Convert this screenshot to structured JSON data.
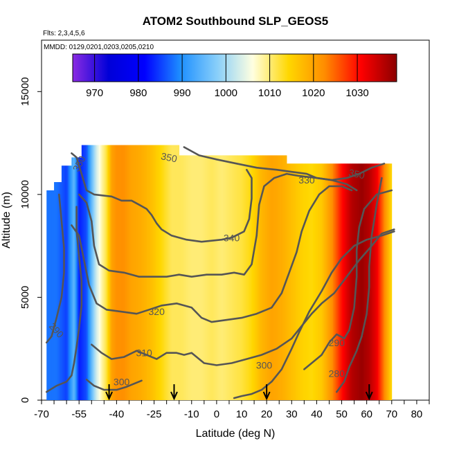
{
  "chart_data": {
    "type": "heatmap",
    "title": "ATOM2 Southbound SLP_GEOS5",
    "annotations": [
      "Flts: 2,3,4,5,6",
      "MMDD: 0129,0201,0203,0205,0210"
    ],
    "xlabel": "Latitude (deg N)",
    "ylabel": "Altitude (m)",
    "xlim": [
      -70,
      85
    ],
    "ylim": [
      0,
      17500
    ],
    "x_ticks": [
      -70,
      -55,
      -40,
      -25,
      -10,
      0,
      10,
      20,
      30,
      40,
      50,
      60,
      70,
      80
    ],
    "y_ticks": [
      0,
      5000,
      10000,
      15000
    ],
    "colorbar": {
      "ticks": [
        970,
        980,
        990,
        1000,
        1010,
        1020,
        1030
      ],
      "range": [
        965,
        1039
      ],
      "colors": [
        "#8a2be2",
        "#0000d8",
        "#0000ff",
        "#1e90ff",
        "#87cefa",
        "#ffffe0",
        "#ffd700",
        "#ff8c00",
        "#ff0000",
        "#8b0000"
      ]
    },
    "slp_profile": {
      "lat": [
        -68,
        -64,
        -60,
        -57,
        -55,
        -52,
        -50,
        -48,
        -46,
        -44,
        -42,
        -40,
        -37,
        -34,
        -30,
        -26,
        -22,
        -18,
        -14,
        -10,
        -6,
        -2,
        2,
        6,
        10,
        14,
        18,
        22,
        26,
        30,
        34,
        38,
        42,
        46,
        50,
        54,
        58,
        61,
        64,
        67,
        70
      ],
      "slp": [
        988,
        988,
        985,
        995,
        983,
        986,
        995,
        1003,
        1008,
        1012,
        1020,
        1022,
        1022,
        1020,
        1019,
        1017,
        1014,
        1011,
        1011,
        1010,
        1010,
        1011,
        1010,
        1011,
        1012,
        1014,
        1018,
        1020,
        1019,
        1017,
        1015,
        1014,
        1016,
        1022,
        1030,
        1036,
        1038,
        1036,
        1032,
        1023,
        1014
      ]
    },
    "ceiling_altitude": [
      {
        "lat_from": -68,
        "lat_to": -65,
        "altitude": 10200
      },
      {
        "lat_from": -65,
        "lat_to": -62,
        "altitude": 10600
      },
      {
        "lat_from": -62,
        "lat_to": -58,
        "altitude": 11400
      },
      {
        "lat_from": -58,
        "lat_to": -54,
        "altitude": 11800
      },
      {
        "lat_from": -54,
        "lat_to": -15,
        "altitude": 12400
      },
      {
        "lat_from": -15,
        "lat_to": 28,
        "altitude": 11900
      },
      {
        "lat_from": 28,
        "lat_to": 70,
        "altitude": 11500
      }
    ],
    "theta_contours": [
      {
        "level": 280,
        "points": [
          [
            48,
            400
          ],
          [
            51,
            900
          ],
          [
            53,
            1600
          ],
          [
            56,
            2400
          ],
          [
            58,
            3100
          ],
          [
            60,
            4200
          ],
          [
            61,
            5500
          ],
          [
            61,
            6500
          ],
          [
            62,
            8000
          ],
          [
            64,
            9500
          ],
          [
            66,
            10800
          ]
        ]
      },
      {
        "level": 290,
        "points": [
          [
            -68,
            2800
          ],
          [
            -66,
            3100
          ],
          [
            -64,
            4000
          ],
          [
            -62,
            5000
          ],
          [
            -61,
            6200
          ],
          [
            -61,
            7400
          ],
          [
            -62,
            8700
          ],
          [
            -63,
            10000
          ]
        ]
      },
      {
        "level": 290,
        "points": [
          [
            35,
            1500
          ],
          [
            38,
            1800
          ],
          [
            42,
            2200
          ],
          [
            45,
            2800
          ],
          [
            48,
            3200
          ],
          [
            51,
            3000
          ],
          [
            53,
            3400
          ],
          [
            55,
            4500
          ],
          [
            56,
            6000
          ],
          [
            56,
            7300
          ],
          [
            57,
            8400
          ],
          [
            59,
            9300
          ],
          [
            64,
            10000
          ],
          [
            70,
            10200
          ]
        ]
      },
      {
        "level": 300,
        "points": [
          [
            -68,
            400
          ],
          [
            -64,
            700
          ],
          [
            -60,
            900
          ],
          [
            -58,
            1200
          ],
          [
            -57,
            1800
          ],
          [
            -56,
            2600
          ],
          [
            -55,
            3500
          ],
          [
            -54,
            4600
          ],
          [
            -54,
            5800
          ],
          [
            -55,
            7000
          ],
          [
            -56,
            8200
          ],
          [
            -56,
            9400
          ]
        ]
      },
      {
        "level": 300,
        "points": [
          [
            -52,
            1000
          ],
          [
            -49,
            700
          ],
          [
            -45,
            500
          ],
          [
            -40,
            500
          ],
          [
            -36,
            650
          ],
          [
            -30,
            950
          ]
        ]
      },
      {
        "level": 300,
        "points": [
          [
            7,
            100
          ],
          [
            10,
            200
          ],
          [
            14,
            300
          ],
          [
            18,
            500
          ],
          [
            22,
            900
          ],
          [
            26,
            1500
          ],
          [
            30,
            2500
          ],
          [
            33,
            3300
          ],
          [
            37,
            4300
          ],
          [
            42,
            5300
          ],
          [
            46,
            6200
          ],
          [
            50,
            6900
          ],
          [
            55,
            7500
          ],
          [
            60,
            7800
          ],
          [
            66,
            8000
          ],
          [
            71,
            8200
          ]
        ]
      },
      {
        "level": 310,
        "points": [
          [
            -50,
            2700
          ],
          [
            -46,
            2300
          ],
          [
            -42,
            2000
          ],
          [
            -37,
            2100
          ],
          [
            -32,
            2400
          ],
          [
            -24,
            2000
          ],
          [
            -20,
            2300
          ],
          [
            -16,
            2300
          ],
          [
            -13,
            2200
          ],
          [
            -10,
            2300
          ],
          [
            -5,
            1800
          ],
          [
            0,
            1700
          ],
          [
            6,
            1800
          ],
          [
            12,
            2000
          ],
          [
            18,
            2200
          ],
          [
            24,
            2500
          ],
          [
            30,
            3000
          ],
          [
            34,
            3600
          ],
          [
            38,
            4200
          ],
          [
            42,
            4700
          ],
          [
            47,
            5200
          ],
          [
            52,
            6000
          ],
          [
            57,
            6800
          ],
          [
            62,
            7500
          ],
          [
            66,
            8100
          ],
          [
            71,
            8300
          ]
        ]
      },
      {
        "level": 320,
        "points": [
          [
            -58,
            8500
          ],
          [
            -55,
            8000
          ],
          [
            -53,
            6800
          ],
          [
            -51,
            5600
          ],
          [
            -48,
            4700
          ],
          [
            -44,
            4400
          ],
          [
            -38,
            4300
          ],
          [
            -32,
            4200
          ],
          [
            -27,
            4400
          ],
          [
            -22,
            4600
          ],
          [
            -16,
            4700
          ],
          [
            -10,
            4500
          ],
          [
            -6,
            4000
          ],
          [
            -2,
            3800
          ],
          [
            4,
            3900
          ],
          [
            10,
            4000
          ],
          [
            16,
            4200
          ],
          [
            22,
            4500
          ],
          [
            26,
            5200
          ],
          [
            29,
            6200
          ],
          [
            32,
            7200
          ],
          [
            34,
            8200
          ],
          [
            37,
            9200
          ],
          [
            41,
            10000
          ],
          [
            45,
            10400
          ],
          [
            50,
            10400
          ],
          [
            54,
            10200
          ]
        ]
      },
      {
        "level": 330,
        "points": [
          [
            -55,
            10000
          ],
          [
            -52,
            9600
          ],
          [
            -50,
            8700
          ],
          [
            -49,
            7500
          ],
          [
            -47,
            6600
          ],
          [
            -43,
            6300
          ],
          [
            -37,
            6200
          ],
          [
            -31,
            6000
          ],
          [
            -26,
            6000
          ],
          [
            -20,
            6000
          ],
          [
            -15,
            6100
          ],
          [
            -10,
            6000
          ],
          [
            -4,
            6100
          ],
          [
            2,
            6100
          ],
          [
            7,
            6200
          ],
          [
            11,
            6100
          ],
          [
            14,
            6600
          ],
          [
            16,
            8000
          ],
          [
            17,
            9500
          ],
          [
            19,
            10400
          ],
          [
            23,
            10800
          ],
          [
            28,
            11000
          ],
          [
            33,
            10900
          ],
          [
            40,
            10800
          ],
          [
            46,
            10700
          ],
          [
            52,
            10500
          ],
          [
            56,
            10200
          ]
        ]
      },
      {
        "level": 340,
        "points": [
          [
            -58,
            12000
          ],
          [
            -56,
            11800
          ],
          [
            -54,
            11000
          ],
          [
            -52,
            10200
          ],
          [
            -49,
            10000
          ],
          [
            -42,
            9900
          ],
          [
            -38,
            9700
          ],
          [
            -34,
            9700
          ],
          [
            -31,
            9500
          ],
          [
            -28,
            9300
          ],
          [
            -26,
            9000
          ],
          [
            -24,
            8600
          ],
          [
            -22,
            8300
          ],
          [
            -18,
            8000
          ],
          [
            -12,
            7800
          ],
          [
            -6,
            7700
          ],
          [
            2,
            7800
          ],
          [
            6,
            7900
          ],
          [
            11,
            8200
          ],
          [
            13,
            8800
          ],
          [
            14,
            9800
          ],
          [
            14,
            10800
          ],
          [
            12,
            11200
          ]
        ]
      },
      {
        "level": 350,
        "points": [
          [
            -13,
            12300
          ],
          [
            -7,
            11900
          ],
          [
            0,
            11700
          ],
          [
            8,
            11500
          ],
          [
            16,
            11300
          ],
          [
            24,
            11200
          ],
          [
            30,
            11100
          ],
          [
            36,
            11000
          ],
          [
            40,
            10800
          ],
          [
            46,
            10700
          ],
          [
            52,
            10800
          ],
          [
            57,
            11000
          ],
          [
            62,
            11300
          ],
          [
            67,
            11500
          ]
        ]
      }
    ],
    "contour_labels": [
      {
        "text": "350",
        "x": -55,
        "y": 11500,
        "angle": -62
      },
      {
        "text": "350",
        "x": -19,
        "y": 11800,
        "angle": 12
      },
      {
        "text": "350",
        "x": 56,
        "y": 11000,
        "angle": 12
      },
      {
        "text": "330",
        "x": 36,
        "y": 10700,
        "angle": 0
      },
      {
        "text": "340",
        "x": 6,
        "y": 7900,
        "angle": 0
      },
      {
        "text": "320",
        "x": -24,
        "y": 4300,
        "angle": 0
      },
      {
        "text": "310",
        "x": -29,
        "y": 2300,
        "angle": 0
      },
      {
        "text": "300",
        "x": -38,
        "y": 900,
        "angle": 0
      },
      {
        "text": "300",
        "x": 19,
        "y": 1700,
        "angle": 0
      },
      {
        "text": "290",
        "x": -64,
        "y": 3400,
        "angle": 48
      },
      {
        "text": "290",
        "x": 48,
        "y": 2800,
        "angle": 0
      },
      {
        "text": "280",
        "x": 48,
        "y": 1300,
        "angle": 0
      }
    ],
    "flight_markers_lat": [
      -43,
      -17,
      20,
      61
    ]
  }
}
